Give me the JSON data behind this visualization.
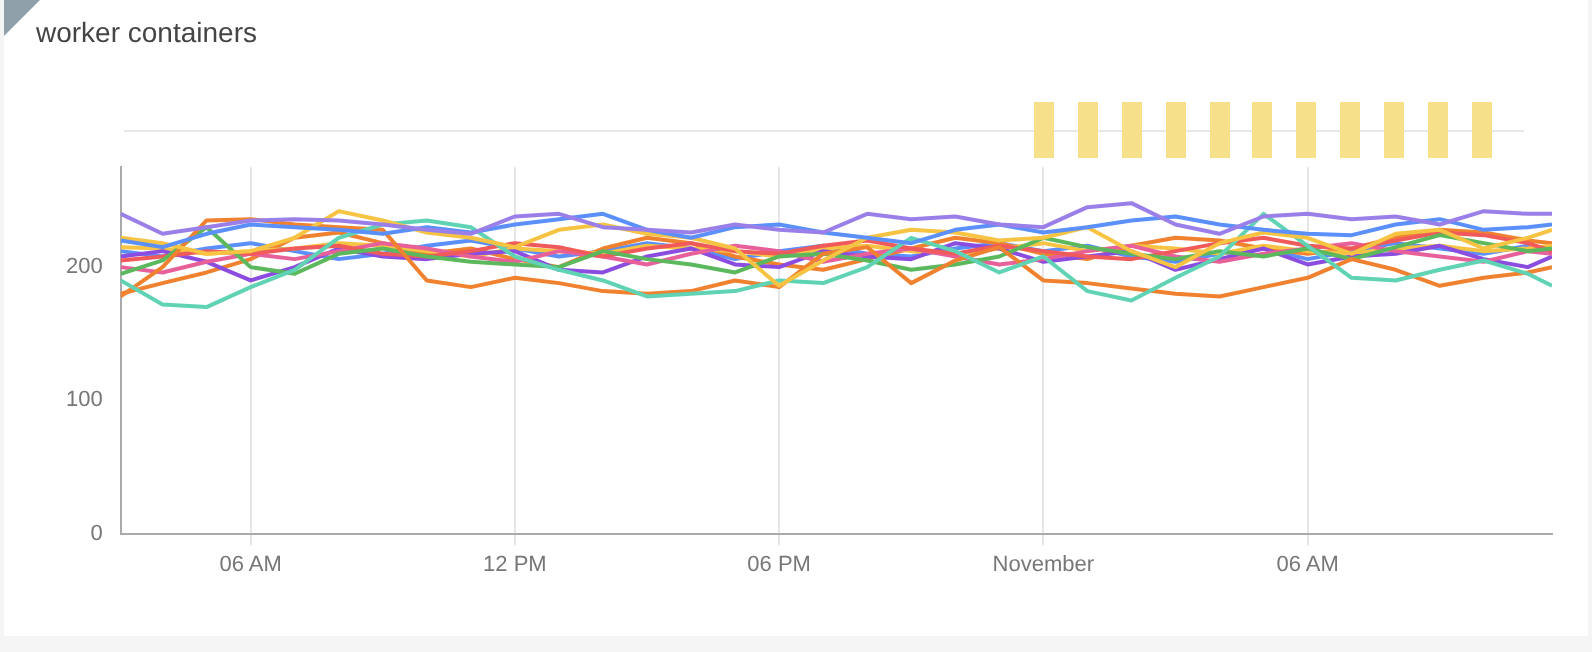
{
  "chart_data": {
    "type": "line",
    "title": "worker containers",
    "x": [
      "--10-31T03:03",
      "--10-31T04:00",
      "--10-31T05:00",
      "--10-31T06:00",
      "--10-31T07:00",
      "--10-31T08:00",
      "--10-31T09:00",
      "--10-31T10:00",
      "--10-31T11:00",
      "--10-31T12:00",
      "--10-31T13:00",
      "--10-31T14:00",
      "--10-31T15:00",
      "--10-31T16:00",
      "--10-31T17:00",
      "--10-31T18:00",
      "--10-31T19:00",
      "--10-31T20:00",
      "--10-31T21:00",
      "--10-31T22:00",
      "--10-31T23:00",
      "--11-01T00:00",
      "--11-01T01:00",
      "--11-01T02:00",
      "--11-01T03:00",
      "--11-01T04:00",
      "--11-01T05:00",
      "--11-01T06:00",
      "--11-01T07:00",
      "--11-01T08:00",
      "--11-01T09:00",
      "--11-01T10:00",
      "--11-01T11:00",
      "--11-01T11:33"
    ],
    "xlim": [
      "--10-31T03:03",
      "--11-01T11:33"
    ],
    "xticks": [
      {
        "value": "--10-31T06:00",
        "label": "06 AM"
      },
      {
        "value": "--10-31T12:00",
        "label": "12 PM"
      },
      {
        "value": "--10-31T18:00",
        "label": "06 PM"
      },
      {
        "value": "--11-01T00:00",
        "label": "November"
      },
      {
        "value": "--11-01T06:00",
        "label": "06 AM"
      }
    ],
    "ylim": [
      0,
      275
    ],
    "yticks": [
      0,
      100,
      200
    ],
    "grid": "x",
    "legend": false,
    "marker": "none",
    "line_style": "solid",
    "series": [
      {
        "color": "#9b7fe8",
        "values": [
          240,
          225,
          230,
          235,
          236,
          235,
          232,
          228,
          225,
          238,
          240,
          230,
          228,
          226,
          232,
          228,
          226,
          240,
          236,
          238,
          232,
          230,
          245,
          248,
          232,
          225,
          238,
          240,
          236,
          238,
          232,
          242,
          240,
          240
        ]
      },
      {
        "color": "#5b8ff9",
        "values": [
          220,
          215,
          225,
          232,
          230,
          228,
          225,
          230,
          226,
          232,
          236,
          240,
          228,
          222,
          230,
          232,
          226,
          222,
          218,
          228,
          232,
          226,
          230,
          235,
          238,
          232,
          228,
          225,
          224,
          232,
          236,
          228,
          230,
          232
        ]
      },
      {
        "color": "#f6c342",
        "values": [
          222,
          218,
          210,
          212,
          222,
          242,
          235,
          226,
          222,
          215,
          228,
          232,
          225,
          222,
          214,
          186,
          205,
          222,
          228,
          226,
          220,
          222,
          230,
          212,
          200,
          218,
          226,
          222,
          210,
          225,
          228,
          214,
          222,
          228
        ]
      },
      {
        "color": "#5fd3b3",
        "values": [
          190,
          172,
          170,
          185,
          198,
          222,
          232,
          235,
          230,
          208,
          198,
          190,
          178,
          180,
          182,
          190,
          188,
          200,
          222,
          212,
          196,
          208,
          182,
          175,
          192,
          208,
          240,
          216,
          192,
          190,
          198,
          205,
          195,
          186
        ]
      },
      {
        "color": "#f0812f",
        "values": [
          178,
          200,
          235,
          236,
          232,
          230,
          228,
          190,
          185,
          192,
          188,
          182,
          180,
          182,
          190,
          185,
          210,
          215,
          188,
          205,
          215,
          190,
          188,
          184,
          180,
          178,
          185,
          192,
          206,
          198,
          186,
          192,
          196,
          200
        ]
      },
      {
        "color": "#5cb85c",
        "values": [
          195,
          205,
          230,
          200,
          195,
          210,
          214,
          208,
          204,
          202,
          200,
          212,
          206,
          202,
          196,
          208,
          210,
          205,
          198,
          202,
          208,
          222,
          215,
          210,
          206,
          212,
          208,
          214,
          206,
          215,
          224,
          218,
          212,
          214
        ]
      },
      {
        "color": "#f05a5a",
        "values": [
          205,
          208,
          212,
          210,
          214,
          216,
          210,
          208,
          212,
          218,
          215,
          208,
          214,
          218,
          212,
          210,
          216,
          220,
          214,
          210,
          216,
          212,
          208,
          206,
          212,
          218,
          222,
          216,
          214,
          220,
          226,
          224,
          218,
          212
        ]
      },
      {
        "color": "#e8609a",
        "values": [
          200,
          196,
          204,
          210,
          206,
          212,
          218,
          214,
          208,
          204,
          212,
          208,
          202,
          210,
          216,
          212,
          204,
          210,
          214,
          208,
          202,
          206,
          212,
          216,
          208,
          204,
          210,
          214,
          218,
          212,
          208,
          204,
          212,
          210
        ]
      },
      {
        "color": "#8a4de0",
        "values": [
          208,
          212,
          204,
          190,
          200,
          214,
          208,
          206,
          210,
          212,
          198,
          196,
          208,
          214,
          202,
          200,
          212,
          208,
          206,
          218,
          214,
          204,
          208,
          212,
          198,
          206,
          214,
          202,
          208,
          210,
          216,
          206,
          200,
          208
        ]
      },
      {
        "color": "#f6c342",
        "values": [
          215,
          214,
          210,
          212,
          214,
          218,
          216,
          212,
          208,
          214,
          212,
          210,
          216,
          214,
          212,
          208,
          214,
          216,
          212,
          210,
          214,
          218,
          212,
          216,
          214,
          210,
          216,
          212,
          210,
          214,
          216,
          212,
          214,
          216
        ]
      },
      {
        "color": "#f0812f",
        "values": [
          180,
          188,
          196,
          206,
          222,
          226,
          218,
          210,
          214,
          206,
          200,
          214,
          222,
          218,
          208,
          202,
          198,
          206,
          214,
          222,
          218,
          210,
          206,
          216,
          222,
          220,
          214,
          210,
          214,
          222,
          228,
          226,
          220,
          218
        ]
      },
      {
        "color": "#5b8ff9",
        "values": [
          212,
          208,
          214,
          218,
          212,
          206,
          210,
          216,
          220,
          214,
          208,
          212,
          218,
          214,
          206,
          212,
          216,
          210,
          208,
          214,
          218,
          212,
          216,
          208,
          204,
          210,
          214,
          206,
          212,
          218,
          214,
          210,
          216,
          212
        ]
      }
    ]
  }
}
